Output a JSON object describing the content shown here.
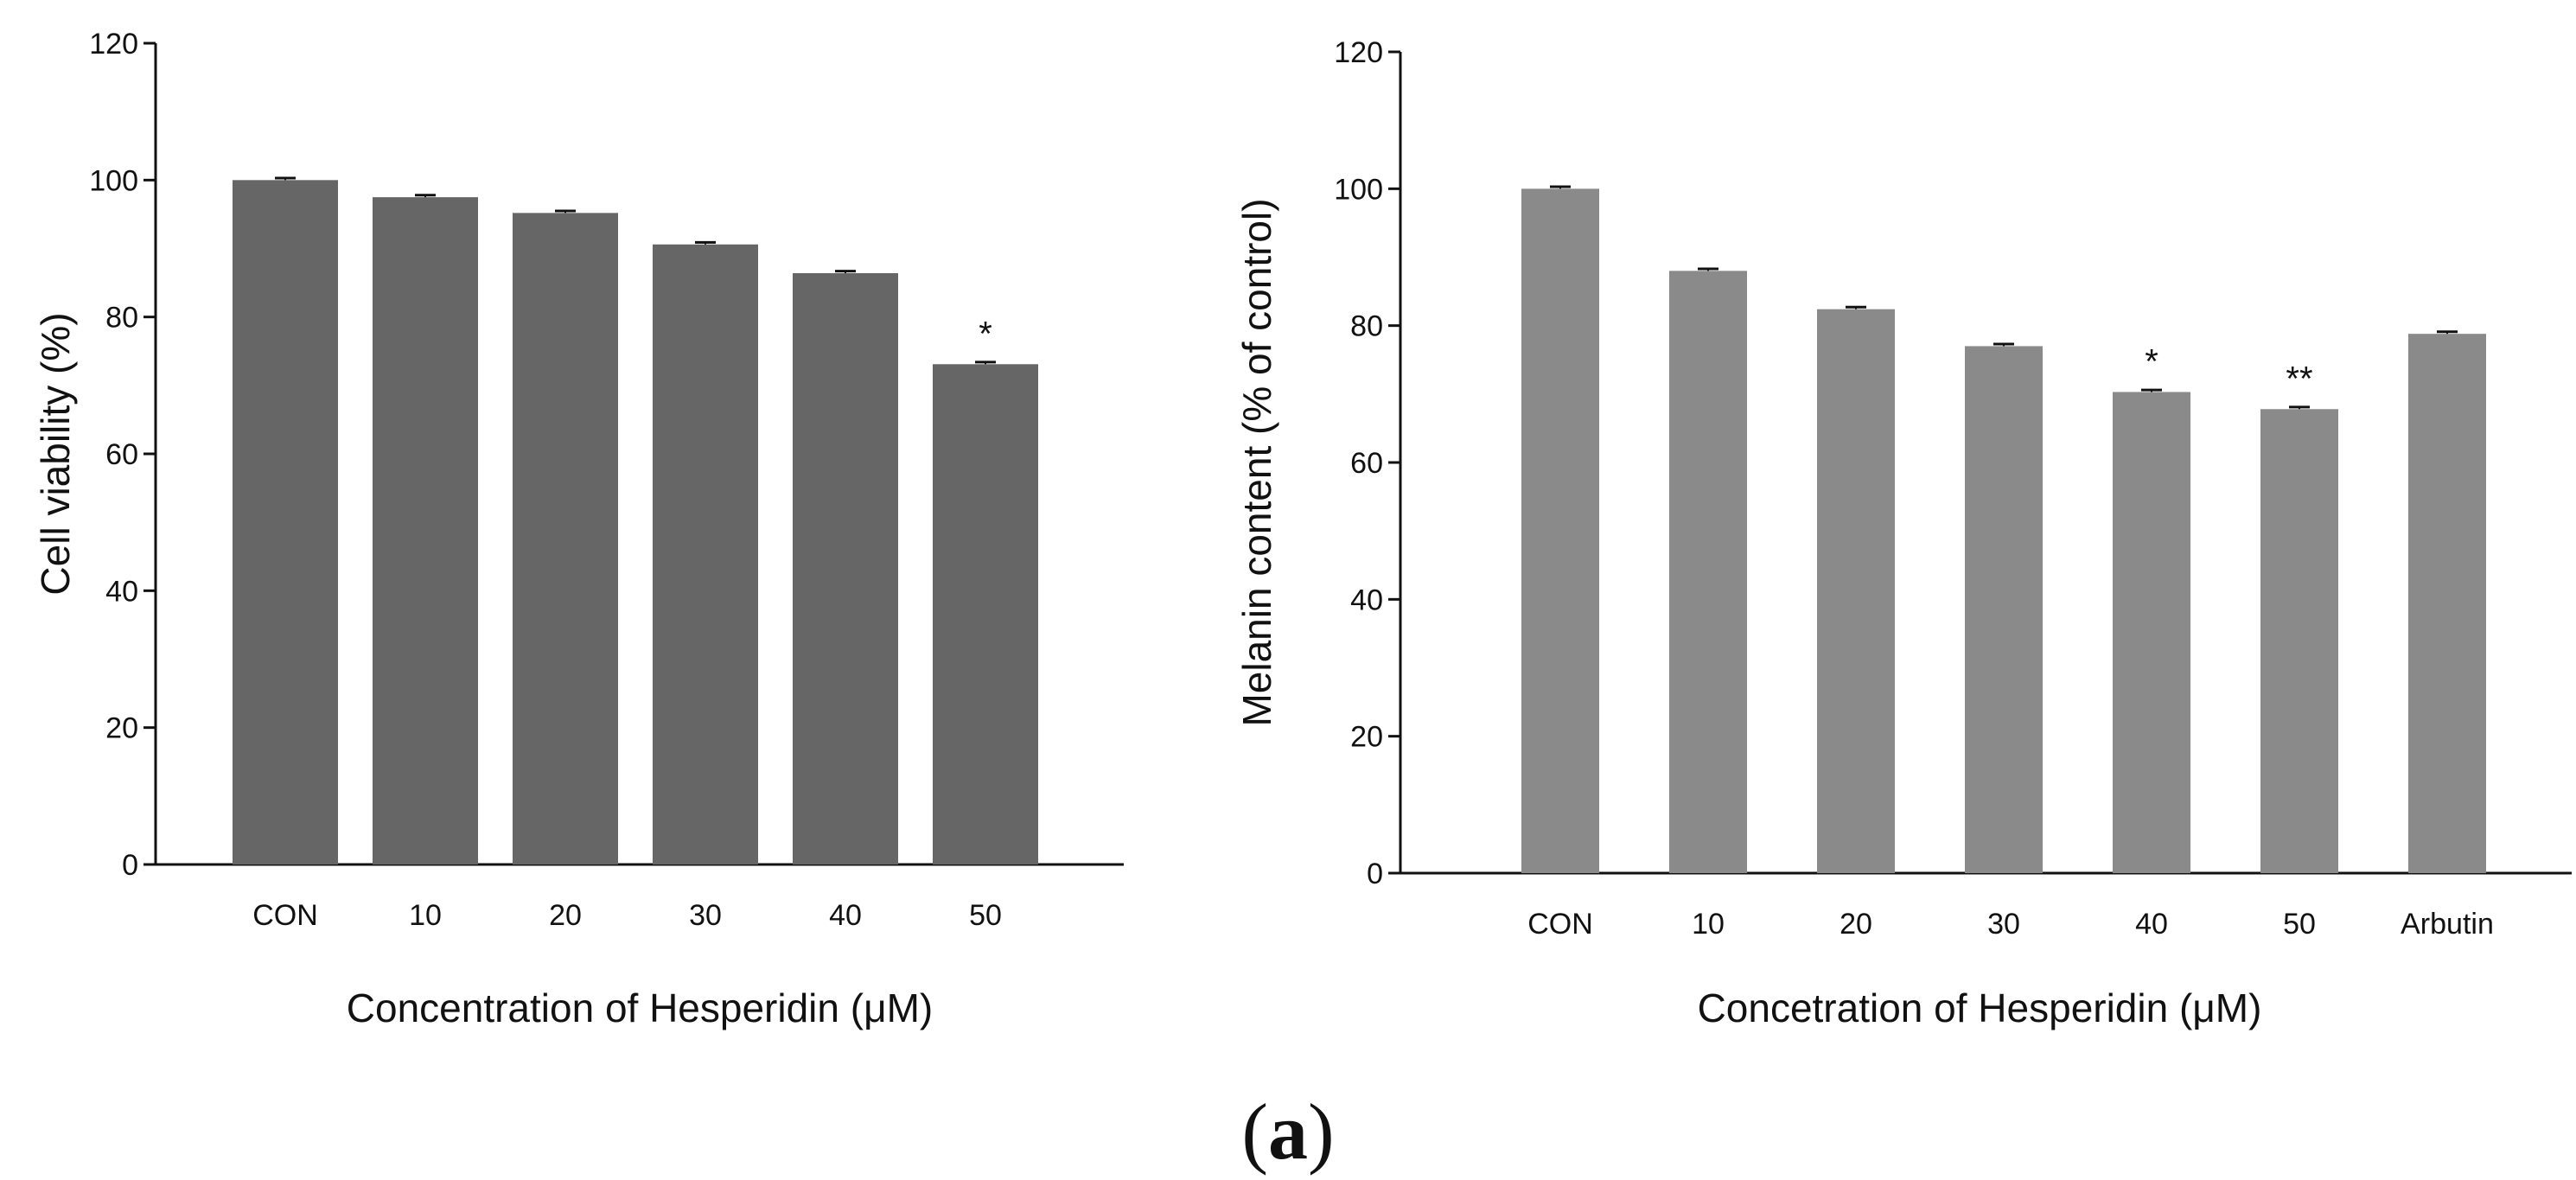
{
  "figure": {
    "caption_open": "(",
    "caption_label": "a",
    "caption_close": ")"
  },
  "chart_data": [
    {
      "type": "bar",
      "title": "",
      "xlabel": "Concentration of Hesperidin (μM)",
      "ylabel": "Cell viability (%)",
      "categories": [
        "CON",
        "10",
        "20",
        "30",
        "40",
        "50"
      ],
      "values": [
        100,
        97.5,
        95.2,
        90.6,
        86.4,
        73.1
      ],
      "errors": [
        0.3,
        0.3,
        0.3,
        0.3,
        0.3,
        0.3
      ],
      "annotations": [
        "",
        "",
        "",
        "",
        "",
        "*"
      ],
      "ylim": [
        0,
        120
      ],
      "yticks": [
        "0",
        "20",
        "40",
        "60",
        "80",
        "100",
        "120"
      ],
      "bar_color": "#666666",
      "grid": false
    },
    {
      "type": "bar",
      "title": "",
      "xlabel": "Concetration of Hesperidin (μM)",
      "ylabel": "Melanin content (% of control)",
      "categories": [
        "CON",
        "10",
        "20",
        "30",
        "40",
        "50",
        "Arbutin"
      ],
      "values": [
        100,
        88,
        82.4,
        77,
        70.3,
        67.8,
        78.8
      ],
      "errors": [
        0.3,
        0.3,
        0.3,
        0.3,
        0.3,
        0.3,
        0.3
      ],
      "annotations": [
        "",
        "",
        "",
        "",
        "*",
        "**",
        ""
      ],
      "ylim": [
        0,
        120
      ],
      "yticks": [
        "0",
        "20",
        "40",
        "60",
        "80",
        "100",
        "120"
      ],
      "bar_color": "#8a8a8a",
      "grid": false
    }
  ]
}
